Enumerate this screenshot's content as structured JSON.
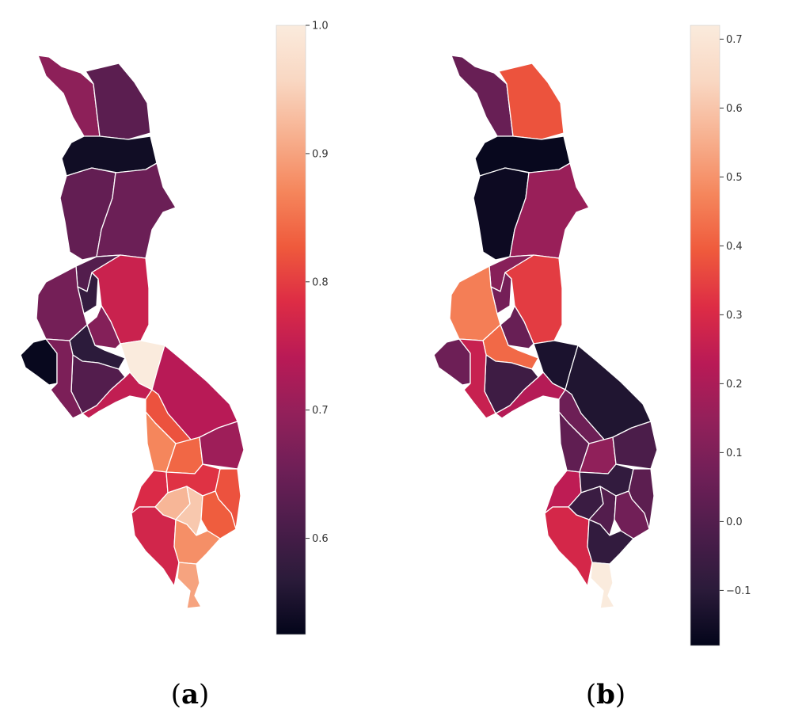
{
  "colormap": [
    "#03051a",
    "#2b1b3a",
    "#4c1d4b",
    "#6f1f57",
    "#93205a",
    "#b91a56",
    "#dd2c45",
    "#ef5a3c",
    "#f5865c",
    "#f7b08f",
    "#f9d7c2",
    "#faebdd"
  ],
  "panels": [
    {
      "label_open": "(",
      "label_letter": "a",
      "label_close": ")",
      "colorbar": {
        "min": 0.525,
        "max": 1.0,
        "ticks": [
          {
            "value": 1.0,
            "label": "1.0"
          },
          {
            "value": 0.9,
            "label": "0.9"
          },
          {
            "value": 0.8,
            "label": "0.8"
          },
          {
            "value": 0.7,
            "label": "0.7"
          },
          {
            "value": 0.6,
            "label": "0.6"
          }
        ]
      },
      "district_values": [
        0.69,
        0.63,
        0.54,
        0.64,
        0.65,
        0.62,
        0.58,
        0.66,
        0.76,
        0.68,
        0.57,
        0.62,
        0.53,
        1.0,
        0.67,
        0.75,
        0.74,
        0.82,
        0.87,
        0.84,
        0.71,
        0.78,
        0.79,
        0.82,
        0.92,
        0.94,
        0.83,
        0.77,
        0.88,
        0.9
      ]
    },
    {
      "label_open": "(",
      "label_letter": "b",
      "label_close": ")",
      "colorbar": {
        "min": -0.18,
        "max": 0.72,
        "ticks": [
          {
            "value": 0.7,
            "label": "0.7"
          },
          {
            "value": 0.6,
            "label": "0.6"
          },
          {
            "value": 0.5,
            "label": "0.5"
          },
          {
            "value": 0.4,
            "label": "0.4"
          },
          {
            "value": 0.3,
            "label": "0.3"
          },
          {
            "value": 0.2,
            "label": "0.2"
          },
          {
            "value": 0.1,
            "label": "0.1"
          },
          {
            "value": 0.0,
            "label": "0.0"
          },
          {
            "value": -0.1,
            "label": "−0.1"
          }
        ]
      },
      "district_values": [
        0.05,
        0.38,
        -0.17,
        -0.16,
        0.16,
        0.12,
        0.08,
        0.46,
        0.34,
        0.05,
        0.42,
        -0.05,
        0.06,
        -0.13,
        0.26,
        0.22,
        -0.12,
        0.06,
        0.03,
        0.14,
        -0.02,
        0.24,
        -0.08,
        0.02,
        -0.06,
        0.0,
        0.07,
        0.29,
        -0.08,
        0.72
      ]
    }
  ]
}
